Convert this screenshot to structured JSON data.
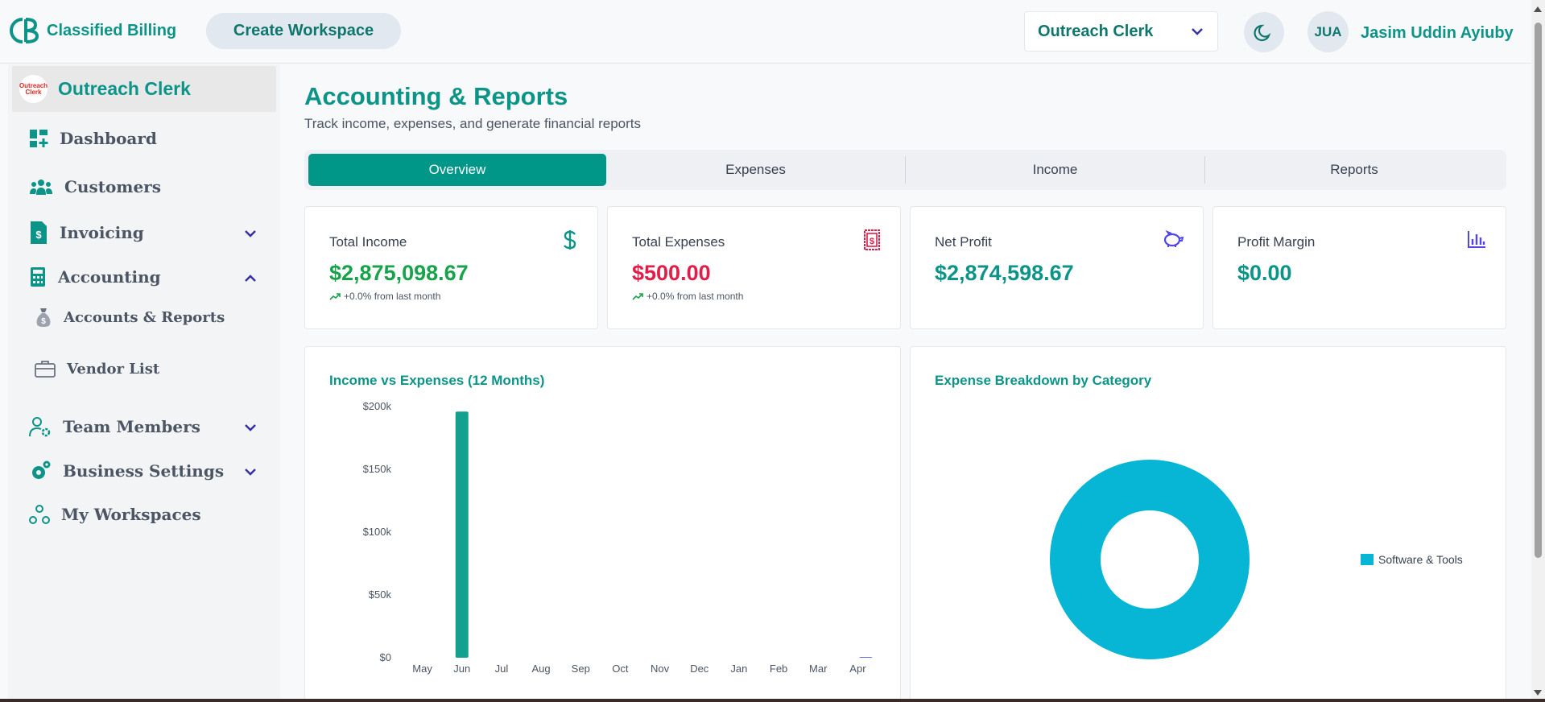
{
  "header": {
    "brand": "Classified Billing",
    "create_workspace": "Create Workspace",
    "workspace_select": "Outreach Clerk",
    "avatar_initials": "JUA",
    "user_name": "Jasim Uddin Ayiuby"
  },
  "sidebar": {
    "workspace_name": "Outreach Clerk",
    "workspace_logo_text": "Outreach Clerk",
    "items": [
      {
        "label": "Dashboard",
        "icon": "dashboard-icon"
      },
      {
        "label": "Customers",
        "icon": "users-icon"
      },
      {
        "label": "Invoicing",
        "icon": "invoice-icon",
        "chevron": "down"
      },
      {
        "label": "Accounting",
        "icon": "calculator-icon",
        "chevron": "up"
      },
      {
        "label": "Team Members",
        "icon": "user-gear-icon",
        "chevron": "down"
      },
      {
        "label": "Business Settings",
        "icon": "gears-icon",
        "chevron": "down"
      },
      {
        "label": "My Workspaces",
        "icon": "workspaces-icon"
      }
    ],
    "sub_items": [
      {
        "label": "Accounts & Reports",
        "icon": "money-bag-icon"
      },
      {
        "label": "Vendor List",
        "icon": "briefcase-icon"
      }
    ]
  },
  "page": {
    "title": "Accounting & Reports",
    "subtitle": "Track income, expenses, and generate financial reports"
  },
  "tabs": [
    "Overview",
    "Expenses",
    "Income",
    "Reports"
  ],
  "active_tab": "Overview",
  "cards": [
    {
      "label": "Total Income",
      "value": "$2,875,098.67",
      "trend": "+0.0% from last month",
      "color": "#16a34a",
      "icon": "dollar-icon"
    },
    {
      "label": "Total Expenses",
      "value": "$500.00",
      "trend": "+0.0% from last month",
      "color": "#e11d48",
      "icon": "receipt-icon"
    },
    {
      "label": "Net Profit",
      "value": "$2,874,598.67",
      "trend": "",
      "color": "#0d9488",
      "icon": "piggy-bank-icon"
    },
    {
      "label": "Profit Margin",
      "value": "$0.00",
      "trend": "",
      "color": "#0d9488",
      "icon": "bar-chart-icon"
    }
  ],
  "colors": {
    "primary": "#009688",
    "income_bar": "#14a08f",
    "expense_bar": "#6366f1",
    "donut": "#06b6d4"
  },
  "chart_data": [
    {
      "type": "bar",
      "title": "Income vs Expenses (12 Months)",
      "categories": [
        "May",
        "Jun",
        "Jul",
        "Aug",
        "Sep",
        "Oct",
        "Nov",
        "Dec",
        "Jan",
        "Feb",
        "Mar",
        "Apr"
      ],
      "series": [
        {
          "values": [
            0,
            196000,
            0,
            0,
            0,
            0,
            0,
            0,
            0,
            0,
            0,
            0
          ]
        },
        {
          "values": [
            0,
            0,
            0,
            0,
            0,
            0,
            0,
            0,
            0,
            0,
            0,
            500
          ]
        }
      ],
      "yticks": [
        "$0",
        "$50k",
        "$100k",
        "$150k",
        "$200k"
      ],
      "ylim": [
        0,
        200000
      ]
    },
    {
      "type": "pie",
      "title": "Expense Breakdown by Category",
      "labels": [
        "Software & Tools"
      ],
      "values": [
        500
      ],
      "legend": "right"
    }
  ]
}
